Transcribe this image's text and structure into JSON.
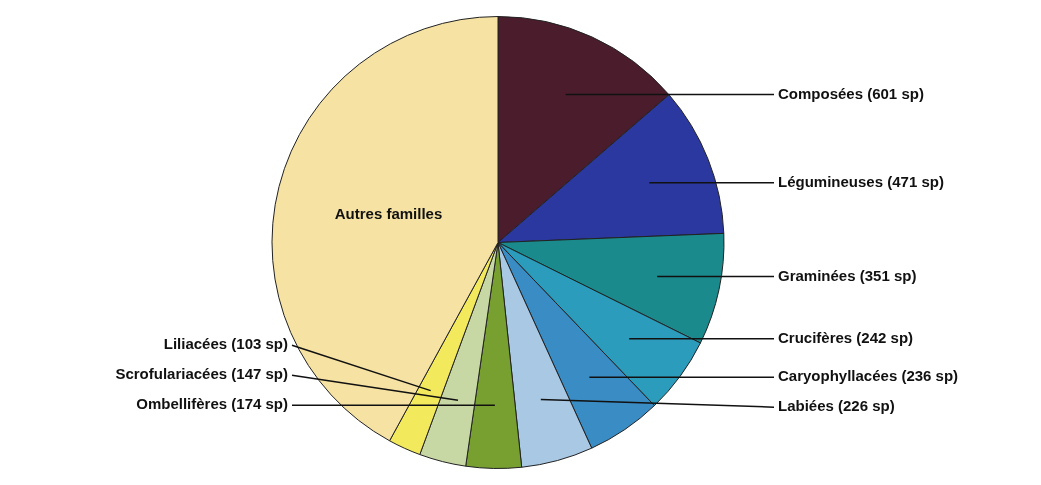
{
  "chart_data": {
    "type": "pie",
    "categories": [
      "Composées (601 sp)",
      "Légumineuses (471 sp)",
      "Graminées (351 sp)",
      "Crucifères (242 sp)",
      "Caryophyllacées (236 sp)",
      "Labiées (226 sp)",
      "Ombellifères (174 sp)",
      "Scrofulariacées (147 sp)",
      "Liliacées (103 sp)",
      "Autres familles"
    ],
    "values": [
      601,
      471,
      351,
      242,
      236,
      226,
      174,
      147,
      103,
      1850
    ],
    "colors": [
      "#4a1c2c",
      "#2a38a0",
      "#1a8a8c",
      "#2c9cbc",
      "#3a8cc4",
      "#a8c8e4",
      "#78a030",
      "#c8d8a4",
      "#f2ea5c",
      "#f6e2a2"
    ]
  }
}
